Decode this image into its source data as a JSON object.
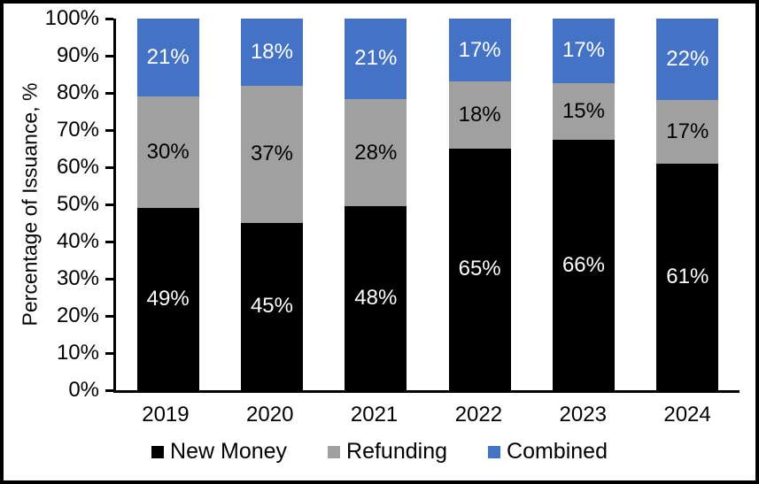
{
  "chart_data": {
    "type": "bar",
    "stacked": "percent",
    "title": "",
    "ylabel": "Percentage of Issuance, %",
    "xlabel": "",
    "categories": [
      "2019",
      "2020",
      "2021",
      "2022",
      "2023",
      "2024"
    ],
    "series": [
      {
        "name": "New Money",
        "color": "#000000",
        "label_color": "#ffffff",
        "values": [
          49,
          45,
          48,
          65,
          66,
          61
        ],
        "labels": [
          "49%",
          "45%",
          "48%",
          "65%",
          "66%",
          "61%"
        ]
      },
      {
        "name": "Refunding",
        "color": "#a0a0a0",
        "label_color": "#000000",
        "values": [
          30,
          37,
          28,
          18,
          15,
          17
        ],
        "labels": [
          "30%",
          "37%",
          "28%",
          "18%",
          "15%",
          "17%"
        ]
      },
      {
        "name": "Combined",
        "color": "#4472c4",
        "label_color": "#ffffff",
        "values": [
          21,
          18,
          21,
          17,
          17,
          22
        ],
        "labels": [
          "21%",
          "18%",
          "21%",
          "17%",
          "17%",
          "22%"
        ]
      }
    ],
    "y_axis": {
      "min": 0,
      "max": 100,
      "tick_step": 10,
      "tick_labels": [
        "0%",
        "10%",
        "20%",
        "30%",
        "40%",
        "50%",
        "60%",
        "70%",
        "80%",
        "90%",
        "100%"
      ]
    },
    "legend": {
      "position": "bottom",
      "entries": [
        "New Money",
        "Refunding",
        "Combined"
      ]
    },
    "grid": false,
    "axis_color": "#000000",
    "background_color": "#ffffff"
  }
}
